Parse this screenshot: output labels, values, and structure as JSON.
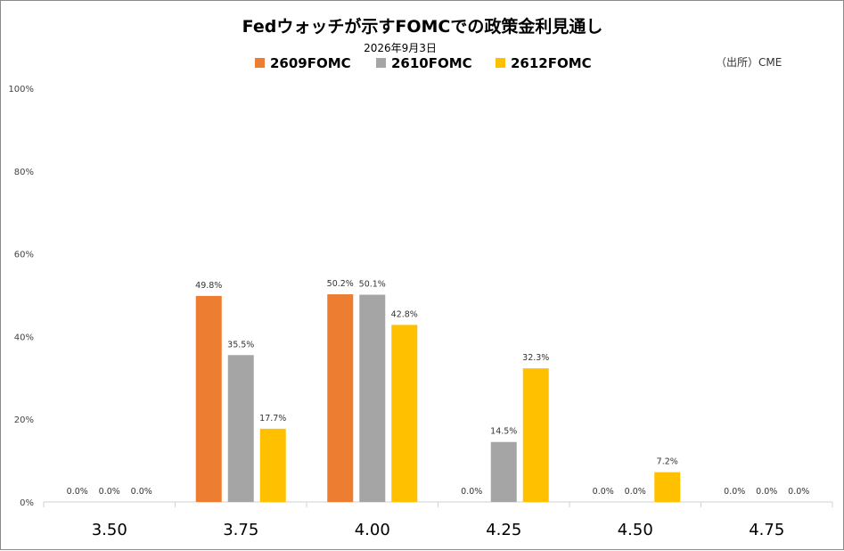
{
  "chart_data": {
    "type": "bar",
    "title": "Fedウォッチが示すFOMCでの政策金利見通し",
    "subtitle": "2026年9月3日",
    "source": "（出所）CME",
    "categories": [
      "3.50",
      "3.75",
      "4.00",
      "4.25",
      "4.50",
      "4.75"
    ],
    "series": [
      {
        "name": "2609FOMC",
        "color": "#ED7D31",
        "values": [
          0.0,
          49.8,
          50.2,
          0.0,
          0.0,
          0.0
        ]
      },
      {
        "name": "2610FOMC",
        "color": "#A5A5A5",
        "values": [
          0.0,
          35.5,
          50.1,
          14.5,
          0.0,
          0.0
        ]
      },
      {
        "name": "2612FOMC",
        "color": "#FFC000",
        "values": [
          0.0,
          17.7,
          42.8,
          32.3,
          7.2,
          0.0
        ]
      }
    ],
    "yticks": [
      "0%",
      "20%",
      "40%",
      "60%",
      "80%",
      "100%"
    ],
    "ylim": [
      0,
      100
    ],
    "data_labels": [
      [
        "0.0%",
        "49.8%",
        "50.2%",
        "0.0%",
        "0.0%",
        "0.0%"
      ],
      [
        "0.0%",
        "35.5%",
        "50.1%",
        "14.5%",
        "0.0%",
        "0.0%"
      ],
      [
        "0.0%",
        "17.7%",
        "42.8%",
        "32.3%",
        "7.2%",
        "0.0%"
      ]
    ],
    "legend_position": "top-center",
    "grid": false
  }
}
